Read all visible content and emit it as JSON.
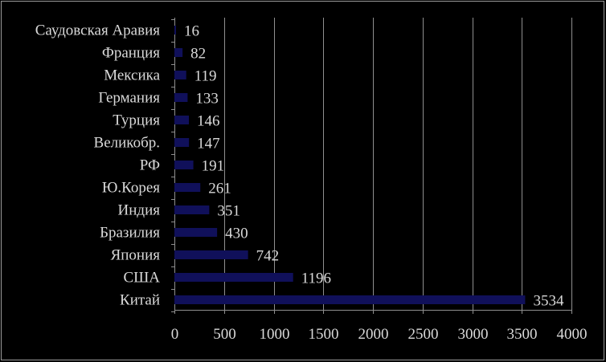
{
  "chart_data": {
    "type": "bar",
    "orientation": "horizontal",
    "categories": [
      "Саудовская Аравия",
      "Франция",
      "Мексика",
      "Германия",
      "Турция",
      "Великобр.",
      "РФ",
      "Ю.Корея",
      "Индия",
      "Бразилия",
      "Япония",
      "США",
      "Китай"
    ],
    "values": [
      16,
      82,
      119,
      133,
      146,
      147,
      191,
      261,
      351,
      430,
      742,
      1196,
      3534
    ],
    "data_labels": [
      "16",
      "82",
      "119",
      "133",
      "146",
      "147",
      "191",
      "261",
      "351",
      "430",
      "742",
      "1196",
      "3534"
    ],
    "xlim": [
      0,
      4000
    ],
    "x_ticks": [
      0,
      500,
      1000,
      1500,
      2000,
      2500,
      3000,
      3500,
      4000
    ],
    "x_tick_labels": [
      "0",
      "500",
      "1000",
      "1500",
      "2000",
      "2500",
      "3000",
      "3500",
      "4000"
    ],
    "grid": "vertical",
    "legend": "none",
    "colors": {
      "background": "#000000",
      "bar": "#10105a",
      "text": "#d9d9d9",
      "grid": "#8f8f8f"
    }
  }
}
